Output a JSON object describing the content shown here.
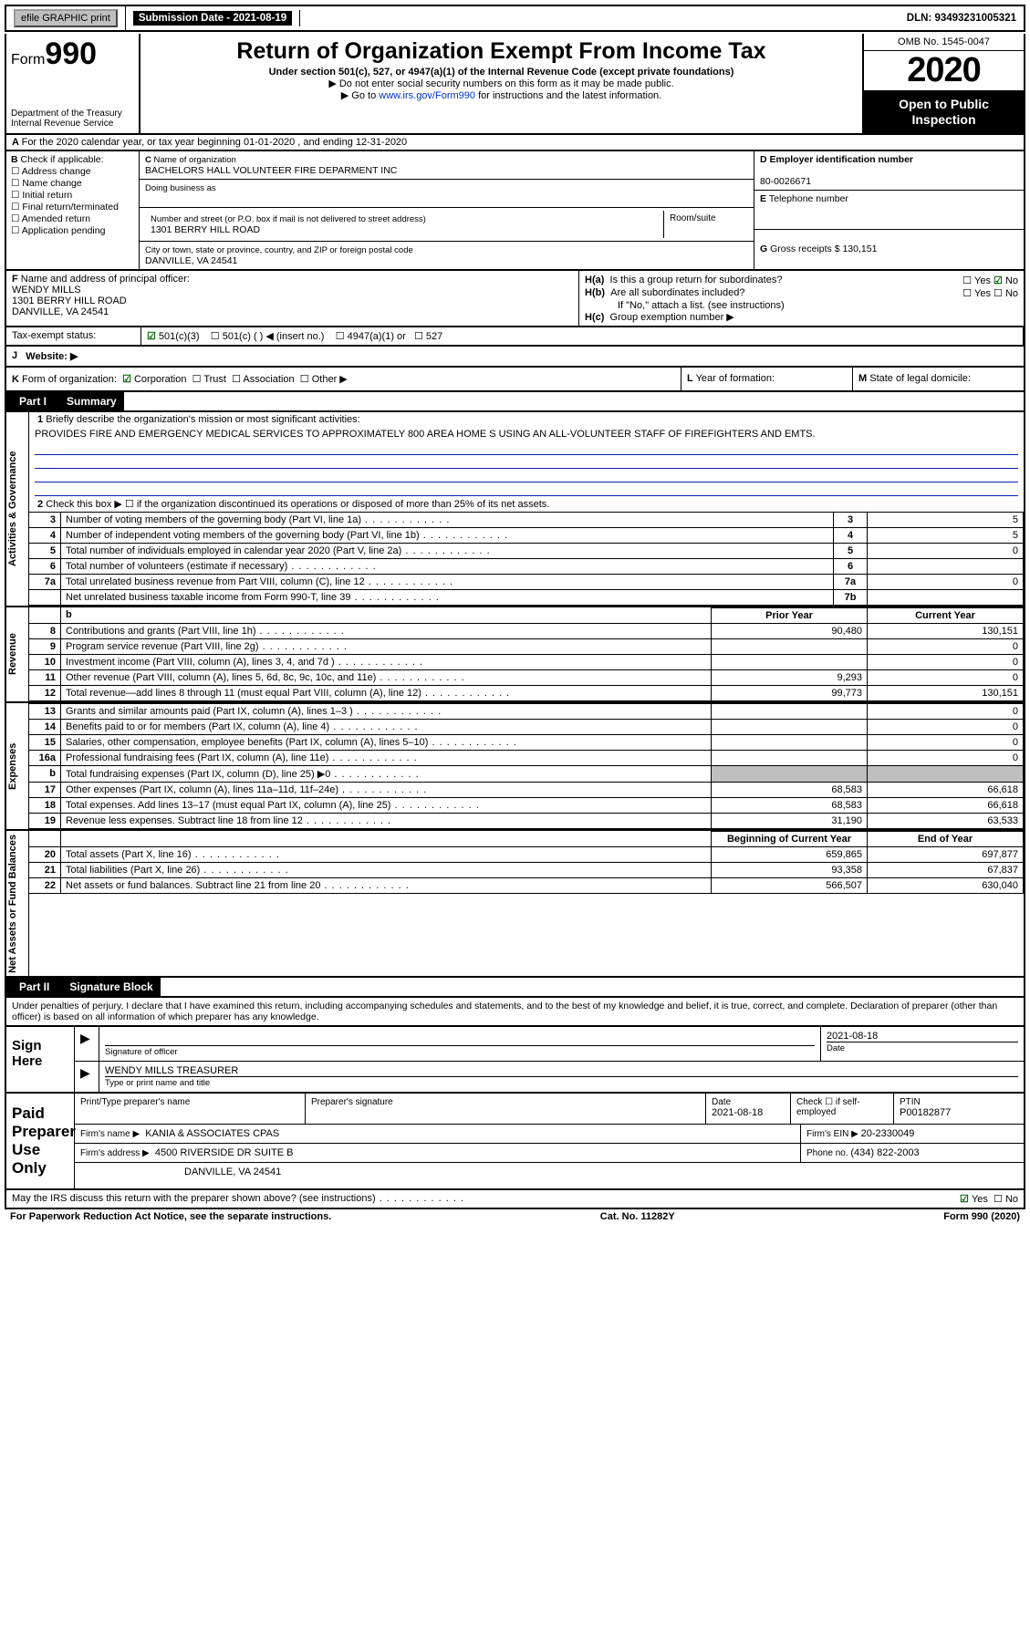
{
  "top": {
    "efile": "efile GRAPHIC print",
    "sub_date_lbl": "Submission Date - ",
    "sub_date": "2021-08-19",
    "dln": "DLN: 93493231005321"
  },
  "header": {
    "form_prefix": "Form",
    "form_num": "990",
    "dept": "Department of the Treasury",
    "irs": "Internal Revenue Service",
    "title": "Return of Organization Exempt From Income Tax",
    "sub1": "Under section 501(c), 527, or 4947(a)(1) of the Internal Revenue Code (except private foundations)",
    "sub2": "Do not enter social security numbers on this form as it may be made public.",
    "sub3_pre": "Go to ",
    "sub3_link": "www.irs.gov/Form990",
    "sub3_post": " for instructions and the latest information.",
    "omb": "OMB No. 1545-0047",
    "year": "2020",
    "open": "Open to Public Inspection"
  },
  "rowA": "For the 2020 calendar year, or tax year beginning 01-01-2020     , and ending 12-31-2020",
  "B": {
    "hdr": "Check if applicable:",
    "b1": "Address change",
    "b2": "Name change",
    "b3": "Initial return",
    "b4": "Final return/terminated",
    "b5": "Amended return",
    "b6": "Application pending"
  },
  "C": {
    "name_lbl": "Name of organization",
    "name": "BACHELORS HALL VOLUNTEER FIRE DEPARMENT INC",
    "dba_lbl": "Doing business as",
    "addr_lbl": "Number and street (or P.O. box if mail is not delivered to street address)",
    "addr": "1301 BERRY HILL ROAD",
    "room_lbl": "Room/suite",
    "city_lbl": "City or town, state or province, country, and ZIP or foreign postal code",
    "city": "DANVILLE, VA  24541"
  },
  "D": {
    "lbl": "Employer identification number",
    "val": "80-0026671"
  },
  "E": {
    "lbl": "Telephone number"
  },
  "G": {
    "lbl": "Gross receipts $ ",
    "val": "130,151"
  },
  "F": {
    "lbl": "Name and address of principal officer:",
    "name": "WENDY MILLS",
    "addr1": "1301 BERRY HILL ROAD",
    "addr2": "DANVILLE, VA  24541"
  },
  "H": {
    "a": "Is this a group return for subordinates?",
    "b": "Are all subordinates included?",
    "b_note": "If \"No,\" attach a list. (see instructions)",
    "c": "Group exemption number ▶",
    "yes": "Yes",
    "no": "No"
  },
  "tax_exempt": {
    "lbl": "Tax-exempt status:",
    "o1": "501(c)(3)",
    "o2": "501(c) (  ) ◀ (insert no.)",
    "o3": "4947(a)(1) or",
    "o4": "527"
  },
  "J": {
    "lbl": "Website: ▶"
  },
  "K": {
    "lbl": "Form of organization:",
    "o1": "Corporation",
    "o2": "Trust",
    "o3": "Association",
    "o4": "Other ▶"
  },
  "L": "Year of formation:",
  "M": "State of legal domicile:",
  "part1": {
    "lbl": "Part I",
    "title": "Summary"
  },
  "vtabs": {
    "gov": "Activities & Governance",
    "rev": "Revenue",
    "exp": "Expenses",
    "net": "Net Assets or Fund Balances"
  },
  "q1": {
    "lbl": "Briefly describe the organization's mission or most significant activities:",
    "txt": "PROVIDES FIRE AND EMERGENCY MEDICAL SERVICES TO APPROXIMATELY 800 AREA HOME S USING AN ALL-VOLUNTEER STAFF OF FIREFIGHTERS AND EMTS."
  },
  "q2": "Check this box ▶ ☐  if the organization discontinued its operations or disposed of more than 25% of its net assets.",
  "lines_gov": [
    {
      "n": "3",
      "d": "Number of voting members of the governing body (Part VI, line 1a)",
      "b": "3",
      "v": "5"
    },
    {
      "n": "4",
      "d": "Number of independent voting members of the governing body (Part VI, line 1b)",
      "b": "4",
      "v": "5"
    },
    {
      "n": "5",
      "d": "Total number of individuals employed in calendar year 2020 (Part V, line 2a)",
      "b": "5",
      "v": "0"
    },
    {
      "n": "6",
      "d": "Total number of volunteers (estimate if necessary)",
      "b": "6",
      "v": ""
    },
    {
      "n": "7a",
      "d": "Total unrelated business revenue from Part VIII, column (C), line 12",
      "b": "7a",
      "v": "0"
    },
    {
      "n": "",
      "d": "Net unrelated business taxable income from Form 990-T, line 39",
      "b": "7b",
      "v": ""
    }
  ],
  "col_hdrs": {
    "py": "Prior Year",
    "cy": "Current Year",
    "boc": "Beginning of Current Year",
    "eoy": "End of Year"
  },
  "lines_rev": [
    {
      "n": "8",
      "d": "Contributions and grants (Part VIII, line 1h)",
      "py": "90,480",
      "cy": "130,151"
    },
    {
      "n": "9",
      "d": "Program service revenue (Part VIII, line 2g)",
      "py": "",
      "cy": "0"
    },
    {
      "n": "10",
      "d": "Investment income (Part VIII, column (A), lines 3, 4, and 7d )",
      "py": "",
      "cy": "0"
    },
    {
      "n": "11",
      "d": "Other revenue (Part VIII, column (A), lines 5, 6d, 8c, 9c, 10c, and 11e)",
      "py": "9,293",
      "cy": "0"
    },
    {
      "n": "12",
      "d": "Total revenue—add lines 8 through 11 (must equal Part VIII, column (A), line 12)",
      "py": "99,773",
      "cy": "130,151"
    }
  ],
  "lines_exp": [
    {
      "n": "13",
      "d": "Grants and similar amounts paid (Part IX, column (A), lines 1–3 )",
      "py": "",
      "cy": "0"
    },
    {
      "n": "14",
      "d": "Benefits paid to or for members (Part IX, column (A), line 4)",
      "py": "",
      "cy": "0"
    },
    {
      "n": "15",
      "d": "Salaries, other compensation, employee benefits (Part IX, column (A), lines 5–10)",
      "py": "",
      "cy": "0"
    },
    {
      "n": "16a",
      "d": "Professional fundraising fees (Part IX, column (A), line 11e)",
      "py": "",
      "cy": "0"
    },
    {
      "n": "b",
      "d": "Total fundraising expenses (Part IX, column (D), line 25) ▶0",
      "py": "GREY",
      "cy": "GREY"
    },
    {
      "n": "17",
      "d": "Other expenses (Part IX, column (A), lines 11a–11d, 11f–24e)",
      "py": "68,583",
      "cy": "66,618"
    },
    {
      "n": "18",
      "d": "Total expenses. Add lines 13–17 (must equal Part IX, column (A), line 25)",
      "py": "68,583",
      "cy": "66,618"
    },
    {
      "n": "19",
      "d": "Revenue less expenses. Subtract line 18 from line 12",
      "py": "31,190",
      "cy": "63,533"
    }
  ],
  "lines_net": [
    {
      "n": "20",
      "d": "Total assets (Part X, line 16)",
      "py": "659,865",
      "cy": "697,877"
    },
    {
      "n": "21",
      "d": "Total liabilities (Part X, line 26)",
      "py": "93,358",
      "cy": "67,837"
    },
    {
      "n": "22",
      "d": "Net assets or fund balances. Subtract line 21 from line 20",
      "py": "566,507",
      "cy": "630,040"
    }
  ],
  "part2": {
    "lbl": "Part II",
    "title": "Signature Block"
  },
  "penalty": "Under penalties of perjury, I declare that I have examined this return, including accompanying schedules and statements, and to the best of my knowledge and belief, it is true, correct, and complete. Declaration of preparer (other than officer) is based on all information of which preparer has any knowledge.",
  "sign": {
    "here": "Sign Here",
    "sig_officer": "Signature of officer",
    "date_lbl": "Date",
    "date": "2021-08-18",
    "name": "WENDY MILLS  TREASURER",
    "name_lbl": "Type or print name and title"
  },
  "paid": {
    "lbl": "Paid Preparer Use Only",
    "h1": "Print/Type preparer's name",
    "h2": "Preparer's signature",
    "h3": "Date",
    "date": "2021-08-18",
    "h4": "Check ☐  if self-employed",
    "ptin_lbl": "PTIN",
    "ptin": "P00182877",
    "firm_name_lbl": "Firm's name     ▶",
    "firm_name": "KANIA & ASSOCIATES CPAS",
    "ein_lbl": "Firm's EIN ▶ ",
    "ein": "20-2330049",
    "addr_lbl": "Firm's address ▶",
    "addr1": "4500 RIVERSIDE DR SUITE B",
    "addr2": "DANVILLE, VA  24541",
    "phone_lbl": "Phone no. ",
    "phone": "(434) 822-2003"
  },
  "discuss": "May the IRS discuss this return with the preparer shown above? (see instructions)",
  "foot": {
    "l": "For Paperwork Reduction Act Notice, see the separate instructions.",
    "c": "Cat. No. 11282Y",
    "r": "Form 990 (2020)"
  }
}
